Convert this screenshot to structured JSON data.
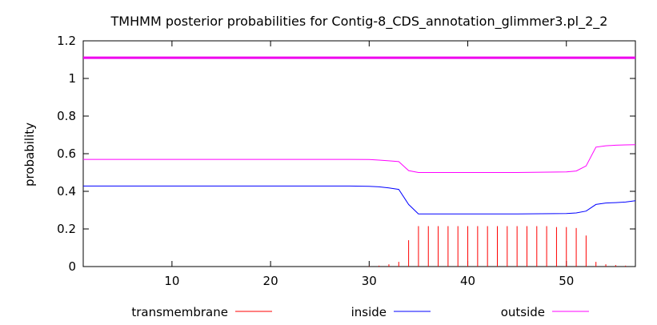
{
  "chart_data": {
    "type": "line",
    "title": "TMHMM posterior probabilities for Contig-8_CDS_annotation_glimmer3.pl_2_2",
    "xlabel": "",
    "ylabel": "probability",
    "xlim": [
      1,
      57
    ],
    "ylim": [
      0,
      1.2
    ],
    "x_ticks": [
      10,
      20,
      30,
      40,
      50
    ],
    "y_ticks": [
      "0",
      "0.2",
      "0.4",
      "0.6",
      "0.8",
      "1",
      "1.2"
    ],
    "y_tick_values": [
      0,
      0.2,
      0.4,
      0.6,
      0.8,
      1.0,
      1.2
    ],
    "legend_position": "bottom",
    "grid": false,
    "colors": {
      "transmembrane": "#ff0000",
      "inside": "#0000ff",
      "outside": "#ff00ff",
      "top_bar": "#ee00ee"
    },
    "top_bar_value": 1.11,
    "series": [
      {
        "name": "transmembrane",
        "style": "impulses",
        "x": [
          30,
          31,
          32,
          33,
          34,
          35,
          36,
          37,
          38,
          39,
          40,
          41,
          42,
          43,
          44,
          45,
          46,
          47,
          48,
          49,
          50,
          51,
          52,
          53,
          54,
          55,
          56
        ],
        "values": [
          0.002,
          0.005,
          0.012,
          0.025,
          0.14,
          0.215,
          0.215,
          0.215,
          0.215,
          0.215,
          0.215,
          0.215,
          0.215,
          0.215,
          0.215,
          0.215,
          0.215,
          0.215,
          0.215,
          0.21,
          0.21,
          0.205,
          0.165,
          0.025,
          0.012,
          0.008,
          0.005
        ]
      },
      {
        "name": "inside",
        "style": "line",
        "x": [
          1,
          28,
          30,
          31,
          32,
          33,
          34,
          35,
          36,
          40,
          45,
          50,
          51,
          52,
          53,
          54,
          55,
          56,
          57
        ],
        "values": [
          0.428,
          0.428,
          0.427,
          0.424,
          0.418,
          0.41,
          0.33,
          0.28,
          0.28,
          0.28,
          0.28,
          0.282,
          0.285,
          0.295,
          0.33,
          0.338,
          0.34,
          0.343,
          0.35
        ]
      },
      {
        "name": "outside",
        "style": "line",
        "x": [
          1,
          28,
          30,
          31,
          32,
          33,
          34,
          35,
          36,
          40,
          45,
          50,
          51,
          52,
          53,
          54,
          55,
          56,
          57
        ],
        "values": [
          0.57,
          0.57,
          0.569,
          0.566,
          0.562,
          0.558,
          0.51,
          0.5,
          0.5,
          0.5,
          0.5,
          0.503,
          0.508,
          0.535,
          0.635,
          0.642,
          0.645,
          0.647,
          0.648
        ]
      }
    ]
  }
}
